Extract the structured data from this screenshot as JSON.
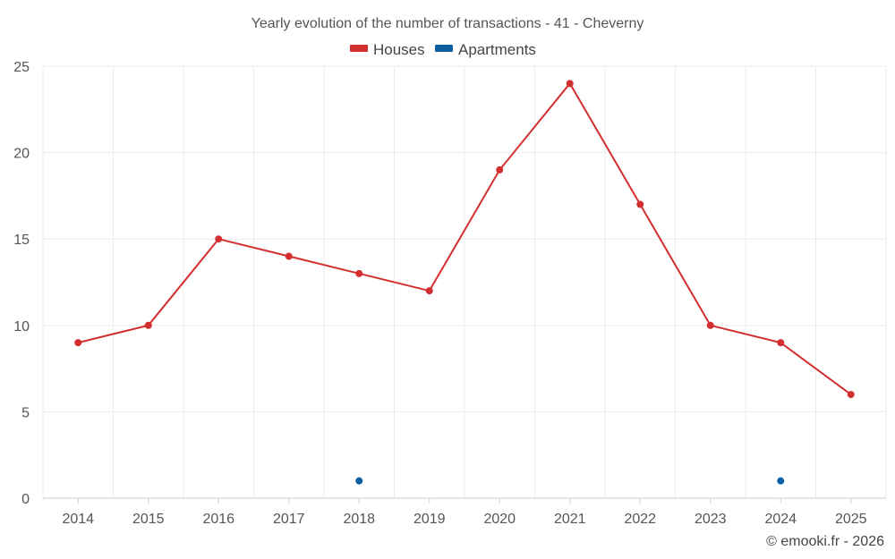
{
  "chart_data": {
    "type": "line",
    "title": "Yearly evolution of the number of transactions - 41 - Cheverny",
    "x": [
      "2014",
      "2015",
      "2016",
      "2017",
      "2018",
      "2019",
      "2020",
      "2021",
      "2022",
      "2023",
      "2024",
      "2025"
    ],
    "series": [
      {
        "name": "Houses",
        "color": "#d32f2f",
        "line": true,
        "values": [
          9,
          10,
          15,
          14,
          13,
          12,
          19,
          24,
          17,
          10,
          9,
          6
        ]
      },
      {
        "name": "Apartments",
        "color": "#0b5fa0",
        "line": false,
        "values": [
          null,
          null,
          null,
          null,
          1,
          null,
          null,
          null,
          null,
          null,
          1,
          null
        ]
      }
    ],
    "ylim": [
      0,
      25
    ],
    "yticks": [
      0,
      5,
      10,
      15,
      20,
      25
    ],
    "xlabel": "",
    "ylabel": "",
    "grid": true,
    "legend_position": "top-center"
  },
  "credit": "© emooki.fr - 2026"
}
